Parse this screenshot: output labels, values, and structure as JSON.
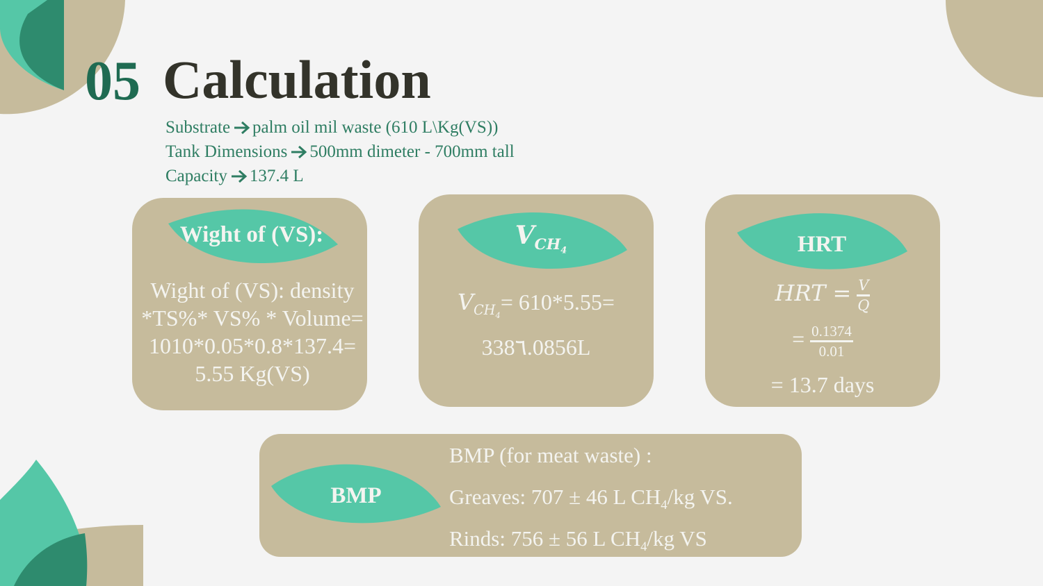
{
  "header": {
    "number": "05",
    "title": "Calculation"
  },
  "info": [
    {
      "label": "Substrate",
      "value": "palm oil mil waste (610 L\\Kg(VS))"
    },
    {
      "label": "Tank Dimensions",
      "value": "500mm dimeter - 700mm tall"
    },
    {
      "label": "Capacity",
      "value": "137.4 L"
    }
  ],
  "cards": [
    {
      "title": "Wight of (VS):",
      "lines": [
        "Wight of (VS): density",
        "*TS%* VS% * Volume=",
        "1010*0.05*0.8*137.4=",
        "5.55 Kg(VS)"
      ]
    },
    {
      "title": {
        "symbol": "V",
        "subscript": "CH",
        "index": "4"
      },
      "formula": {
        "symbol": "V",
        "subscript": "CH",
        "index": "4",
        "rhs": "= 610*5.55="
      },
      "result": "338٦.0856L"
    },
    {
      "title": "HRT",
      "formula": {
        "lhs": "HRT =",
        "numerator": "V",
        "denominator": "Q"
      },
      "step": {
        "lhs": "=",
        "numerator": "0.1374",
        "denominator": "0.01"
      },
      "result": "= 13.7 days"
    }
  ],
  "bmp": {
    "label": "BMP",
    "heading": "BMP (for meat waste) :",
    "items": [
      {
        "text": "Greaves: 707 ± 46 L CH",
        "subscript": "4",
        "unit": "/kg VS."
      },
      {
        "text": "Rinds: 756 ± 56 L CH",
        "subscript": "4",
        "unit": "/kg VS"
      }
    ]
  }
}
